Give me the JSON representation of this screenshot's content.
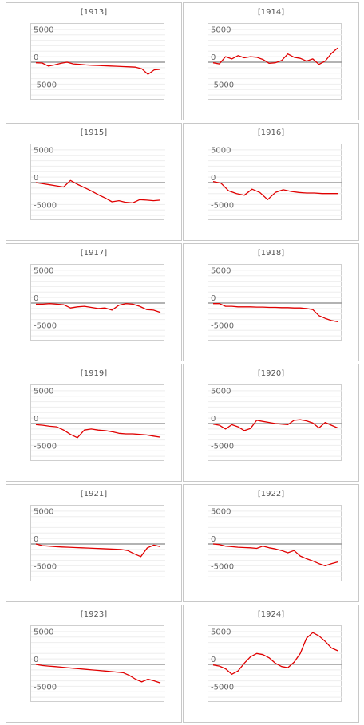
{
  "colors": {
    "line": "#e00000",
    "zero_line": "#9a9a9a",
    "grid": "#eeeeee",
    "border": "#c8c8c8",
    "tick": "#666666"
  },
  "chart_data": [
    {
      "type": "line",
      "title": "[1913]",
      "ylim": [
        -7000,
        7000
      ],
      "yticks": [
        5000,
        0,
        -5000
      ],
      "x": [
        0,
        1,
        2,
        3,
        4,
        5,
        6,
        7,
        8,
        9,
        10,
        11,
        12,
        13,
        14,
        15,
        16,
        17,
        18,
        19,
        20
      ],
      "values": [
        -100,
        -150,
        -700,
        -500,
        -200,
        0,
        -300,
        -400,
        -500,
        -550,
        -600,
        -650,
        -700,
        -750,
        -800,
        -850,
        -900,
        -1200,
        -2200,
        -1400,
        -1300
      ]
    },
    {
      "type": "line",
      "title": "[1914]",
      "ylim": [
        -7000,
        7000
      ],
      "yticks": [
        5000,
        0,
        -5000
      ],
      "x": [
        0,
        1,
        2,
        3,
        4,
        5,
        6,
        7,
        8,
        9,
        10,
        11,
        12,
        13,
        14,
        15,
        16,
        17,
        18,
        19,
        20
      ],
      "values": [
        -100,
        -300,
        1000,
        600,
        1200,
        800,
        1000,
        900,
        500,
        -200,
        -100,
        300,
        1500,
        900,
        700,
        200,
        600,
        -400,
        200,
        1600,
        2600
      ]
    },
    {
      "type": "line",
      "title": "[1915]",
      "ylim": [
        -7000,
        7000
      ],
      "yticks": [
        5000,
        0,
        -5000
      ],
      "x": [
        0,
        1,
        2,
        3,
        4,
        5,
        6,
        7,
        8,
        9,
        10,
        11,
        12,
        13,
        14,
        15,
        16,
        17,
        18
      ],
      "values": [
        0,
        -200,
        -400,
        -600,
        -800,
        400,
        -300,
        -900,
        -1500,
        -2200,
        -2800,
        -3500,
        -3300,
        -3600,
        -3700,
        -3100,
        -3200,
        -3300,
        -3200
      ]
    },
    {
      "type": "line",
      "title": "[1916]",
      "ylim": [
        -7000,
        7000
      ],
      "yticks": [
        5000,
        0,
        -5000
      ],
      "x": [
        0,
        1,
        2,
        3,
        4,
        5,
        6,
        7,
        8,
        9,
        10,
        11,
        12,
        13,
        14,
        15,
        16
      ],
      "values": [
        200,
        -100,
        -1500,
        -2000,
        -2300,
        -1200,
        -1800,
        -3100,
        -1800,
        -1300,
        -1600,
        -1800,
        -1900,
        -1900,
        -2000,
        -2000,
        -2000
      ]
    },
    {
      "type": "line",
      "title": "[1917]",
      "ylim": [
        -7000,
        7000
      ],
      "yticks": [
        5000,
        0,
        -5000
      ],
      "x": [
        0,
        1,
        2,
        3,
        4,
        5,
        6,
        7,
        8,
        9,
        10,
        11,
        12,
        13,
        14,
        15,
        16,
        17,
        18
      ],
      "values": [
        -200,
        -200,
        -100,
        -200,
        -300,
        -900,
        -700,
        -600,
        -800,
        -1000,
        -900,
        -1300,
        -400,
        -100,
        -200,
        -600,
        -1200,
        -1300,
        -1700
      ]
    },
    {
      "type": "line",
      "title": "[1918]",
      "ylim": [
        -7000,
        7000
      ],
      "yticks": [
        5000,
        0,
        -5000
      ],
      "x": [
        0,
        1,
        2,
        3,
        4,
        5,
        6,
        7,
        8,
        9,
        10,
        11,
        12,
        13,
        14,
        15,
        16,
        17,
        18,
        19,
        20
      ],
      "values": [
        -100,
        -100,
        -600,
        -600,
        -700,
        -700,
        -700,
        -750,
        -750,
        -800,
        -800,
        -850,
        -850,
        -900,
        -900,
        -1000,
        -1200,
        -2300,
        -2800,
        -3200,
        -3400
      ]
    },
    {
      "type": "line",
      "title": "[1919]",
      "ylim": [
        -7000,
        7000
      ],
      "yticks": [
        5000,
        0,
        -5000
      ],
      "x": [
        0,
        1,
        2,
        3,
        4,
        5,
        6,
        7,
        8,
        9,
        10,
        11,
        12,
        13,
        14,
        15,
        16,
        17,
        18
      ],
      "values": [
        -200,
        -300,
        -500,
        -600,
        -1200,
        -2000,
        -2600,
        -1200,
        -1000,
        -1200,
        -1300,
        -1500,
        -1800,
        -1900,
        -1900,
        -2000,
        -2100,
        -2300,
        -2500
      ]
    },
    {
      "type": "line",
      "title": "[1920]",
      "ylim": [
        -7000,
        7000
      ],
      "yticks": [
        5000,
        0,
        -5000
      ],
      "x": [
        0,
        1,
        2,
        3,
        4,
        5,
        6,
        7,
        8,
        9,
        10,
        11,
        12,
        13,
        14,
        15,
        16,
        17,
        18,
        19,
        20
      ],
      "values": [
        -100,
        -300,
        -1000,
        -200,
        -600,
        -1300,
        -900,
        600,
        400,
        200,
        0,
        -100,
        -200,
        600,
        700,
        500,
        100,
        -800,
        200,
        -300,
        -800
      ]
    },
    {
      "type": "line",
      "title": "[1921]",
      "ylim": [
        -7000,
        7000
      ],
      "yticks": [
        5000,
        0,
        -5000
      ],
      "x": [
        0,
        1,
        2,
        3,
        4,
        5,
        6,
        7,
        8,
        9,
        10,
        11,
        12,
        13,
        14,
        15,
        16,
        17,
        18,
        19
      ],
      "values": [
        0,
        -300,
        -400,
        -500,
        -550,
        -600,
        -650,
        -700,
        -750,
        -800,
        -850,
        -900,
        -950,
        -1000,
        -1200,
        -1800,
        -2300,
        -700,
        -200,
        -500
      ]
    },
    {
      "type": "line",
      "title": "[1922]",
      "ylim": [
        -7000,
        7000
      ],
      "yticks": [
        5000,
        0,
        -5000
      ],
      "x": [
        0,
        1,
        2,
        3,
        4,
        5,
        6,
        7,
        8,
        9,
        10,
        11,
        12,
        13,
        14,
        15,
        16,
        17,
        18,
        19,
        20
      ],
      "values": [
        0,
        -100,
        -400,
        -500,
        -600,
        -650,
        -700,
        -800,
        -400,
        -700,
        -900,
        -1200,
        -1600,
        -1200,
        -2200,
        -2700,
        -3100,
        -3600,
        -4000,
        -3600,
        -3300
      ]
    },
    {
      "type": "line",
      "title": "[1923]",
      "ylim": [
        -7000,
        7000
      ],
      "yticks": [
        5000,
        0,
        -5000
      ],
      "x": [
        0,
        1,
        2,
        3,
        4,
        5,
        6,
        7,
        8,
        9,
        10,
        11,
        12,
        13,
        14,
        15,
        16,
        17,
        18,
        19,
        20
      ],
      "values": [
        0,
        -200,
        -300,
        -400,
        -500,
        -600,
        -700,
        -800,
        -900,
        -1000,
        -1100,
        -1200,
        -1300,
        -1400,
        -1500,
        -2000,
        -2700,
        -3200,
        -2700,
        -3000,
        -3400
      ]
    },
    {
      "type": "line",
      "title": "[1924]",
      "ylim": [
        -7000,
        7000
      ],
      "yticks": [
        5000,
        0,
        -5000
      ],
      "x": [
        0,
        1,
        2,
        3,
        4,
        5,
        6,
        7,
        8,
        9,
        10,
        11,
        12,
        13,
        14,
        15,
        16,
        17,
        18,
        19,
        20
      ],
      "values": [
        -100,
        -300,
        -800,
        -1800,
        -1200,
        200,
        1400,
        2000,
        1800,
        1200,
        200,
        -400,
        -600,
        400,
        2000,
        4800,
        5800,
        5200,
        4200,
        3000,
        2500
      ]
    }
  ]
}
